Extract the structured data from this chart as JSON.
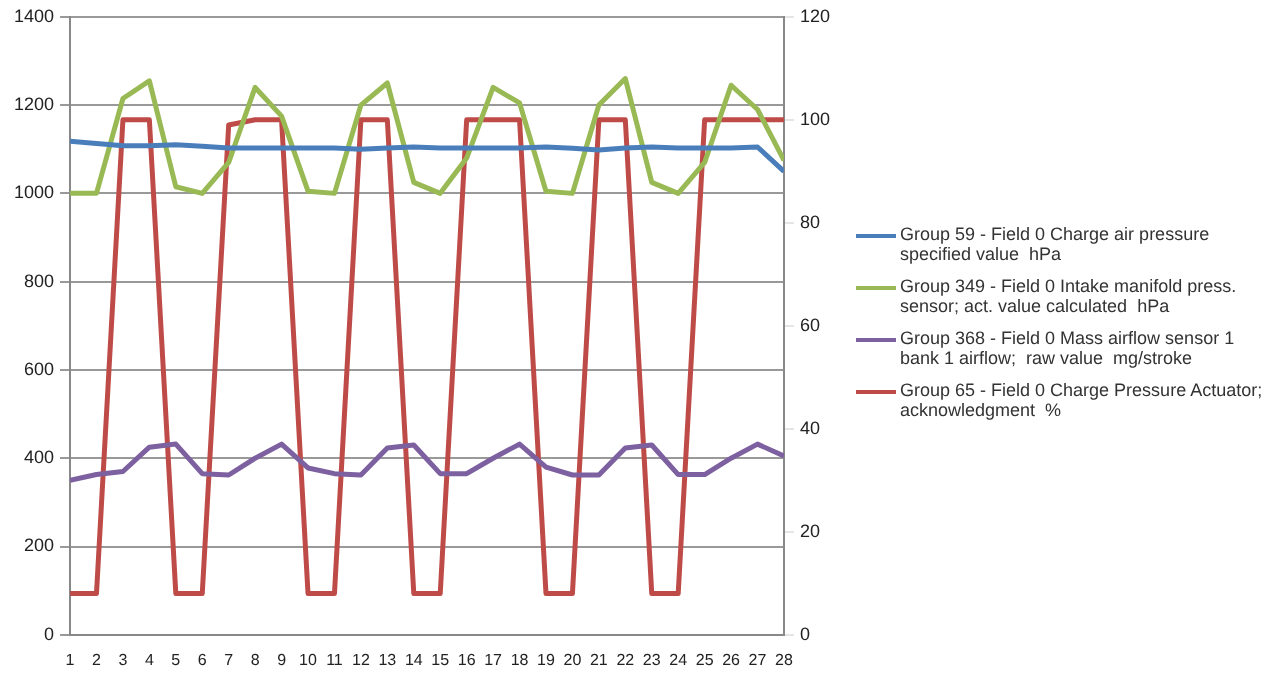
{
  "chart_data": {
    "type": "line",
    "x": [
      1,
      2,
      3,
      4,
      5,
      6,
      7,
      8,
      9,
      10,
      11,
      12,
      13,
      14,
      15,
      16,
      17,
      18,
      19,
      20,
      21,
      22,
      23,
      24,
      25,
      26,
      27,
      28
    ],
    "xlim": [
      1,
      28
    ],
    "xticks": [
      1,
      2,
      3,
      4,
      5,
      6,
      7,
      8,
      9,
      10,
      11,
      12,
      13,
      14,
      15,
      16,
      17,
      18,
      19,
      20,
      21,
      22,
      23,
      24,
      25,
      26,
      27,
      28
    ],
    "ylim": [
      0,
      1400
    ],
    "yticks": [
      0,
      200,
      400,
      600,
      800,
      1000,
      1200,
      1400
    ],
    "y2lim": [
      0,
      120
    ],
    "y2ticks": [
      0,
      20,
      40,
      60,
      80,
      100,
      120
    ],
    "grid": "y",
    "legend": "right",
    "marker": "none",
    "series": [
      {
        "name": "Group 59 - Field 0 Charge air pressure specified value  hPa",
        "color": "#4a7ebb",
        "values": [
          1118,
          1113,
          1108,
          1108,
          1110,
          1107,
          1103,
          1103,
          1103,
          1103,
          1103,
          1100,
          1103,
          1105,
          1103,
          1103,
          1103,
          1103,
          1105,
          1102,
          1098,
          1103,
          1105,
          1103,
          1103,
          1103,
          1105,
          1050
        ]
      },
      {
        "name": "Group 349 - Field 0 Intake manifold press. sensor; act. value calculated  hPa",
        "color": "#98b954",
        "values": [
          1000,
          1000,
          1215,
          1255,
          1015,
          1000,
          1070,
          1240,
          1175,
          1005,
          1000,
          1200,
          1250,
          1025,
          1000,
          1080,
          1240,
          1205,
          1005,
          1000,
          1200,
          1260,
          1025,
          1000,
          1070,
          1245,
          1190,
          1075
        ]
      },
      {
        "name": "Group 368 - Field 0 Mass airflow sensor 1 bank 1 airflow;  raw value  mg/stroke",
        "color": "#7d60a0",
        "values": [
          350,
          363,
          370,
          425,
          432,
          365,
          362,
          400,
          432,
          378,
          365,
          362,
          423,
          430,
          365,
          365,
          400,
          432,
          380,
          362,
          362,
          423,
          430,
          363,
          363,
          400,
          432,
          405
        ]
      },
      {
        "name": "Group 65 - Field 0 Charge Pressure Actuator; acknowledgment  %",
        "color": "#be4b48",
        "axis": "y2",
        "values": [
          8,
          8,
          100,
          100,
          8,
          8,
          99,
          100,
          100,
          8,
          8,
          100,
          100,
          8,
          8,
          100,
          100,
          100,
          8,
          8,
          100,
          100,
          8,
          8,
          100,
          100,
          100,
          100
        ]
      }
    ]
  }
}
